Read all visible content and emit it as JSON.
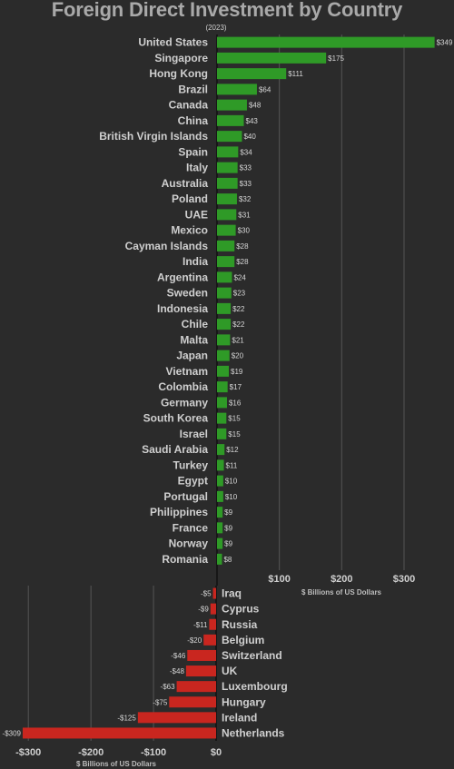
{
  "chart_data": {
    "title": "Foreign Direct Investment by Country",
    "subtitle": "(2023)",
    "type": "bar",
    "orientation": "horizontal",
    "value_prefix": "$",
    "positive": {
      "categories": [
        "United States",
        "Singapore",
        "Hong Kong",
        "Brazil",
        "Canada",
        "China",
        "British Virgin Islands",
        "Spain",
        "Italy",
        "Australia",
        "Poland",
        "UAE",
        "Mexico",
        "Cayman Islands",
        "India",
        "Argentina",
        "Sweden",
        "Indonesia",
        "Chile",
        "Malta",
        "Japan",
        "Vietnam",
        "Colombia",
        "Germany",
        "South Korea",
        "Israel",
        "Saudi Arabia",
        "Turkey",
        "Egypt",
        "Portugal",
        "Philippines",
        "France",
        "Norway",
        "Romania"
      ],
      "values": [
        349,
        175,
        111,
        64,
        48,
        43,
        40,
        34,
        33,
        33,
        32,
        31,
        30,
        28,
        28,
        24,
        23,
        22,
        22,
        21,
        20,
        19,
        17,
        16,
        15,
        15,
        12,
        11,
        10,
        10,
        9,
        9,
        9,
        8
      ],
      "color": "#2f9a27",
      "xlabel": "$ Billions of US Dollars",
      "xticks": [
        100,
        200,
        300
      ],
      "tick_labels": [
        "$100",
        "$200",
        "$300"
      ],
      "xlim": [
        0,
        360
      ]
    },
    "negative": {
      "categories": [
        "Iraq",
        "Cyprus",
        "Russia",
        "Belgium",
        "Switzerland",
        "UK",
        "Luxembourg",
        "Hungary",
        "Ireland",
        "Netherlands"
      ],
      "values": [
        -5,
        -9,
        -11,
        -20,
        -46,
        -48,
        -63,
        -75,
        -125,
        -309
      ],
      "color": "#c9261f",
      "xlabel": "$ Billions of US Dollars",
      "xticks": [
        -300,
        -200,
        -100,
        0
      ],
      "tick_labels": [
        "-$300",
        "-$200",
        "-$100",
        "$0"
      ],
      "xlim": [
        -310,
        0
      ]
    },
    "grid": true
  }
}
